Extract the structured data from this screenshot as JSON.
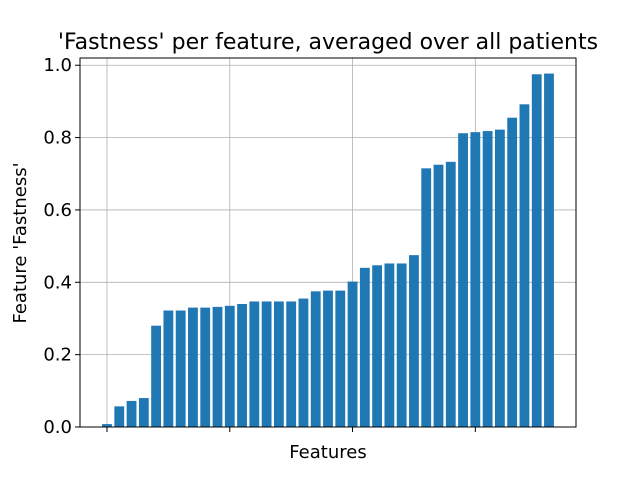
{
  "chart_data": {
    "type": "bar",
    "title": "'Fastness' per feature, averaged over all patients",
    "xlabel": "Features",
    "ylabel": "Feature 'Fastness'",
    "ylim": [
      0,
      1.02
    ],
    "yticks": [
      "0.0",
      "0.2",
      "0.4",
      "0.6",
      "0.8",
      "1.0"
    ],
    "grid": true,
    "color": "#1f77b4",
    "values": [
      0.008,
      0.057,
      0.072,
      0.08,
      0.28,
      0.322,
      0.322,
      0.33,
      0.33,
      0.332,
      0.335,
      0.34,
      0.347,
      0.347,
      0.347,
      0.347,
      0.355,
      0.375,
      0.377,
      0.377,
      0.402,
      0.44,
      0.447,
      0.452,
      0.452,
      0.475,
      0.715,
      0.725,
      0.733,
      0.812,
      0.815,
      0.818,
      0.822,
      0.855,
      0.892,
      0.975,
      0.977
    ]
  }
}
